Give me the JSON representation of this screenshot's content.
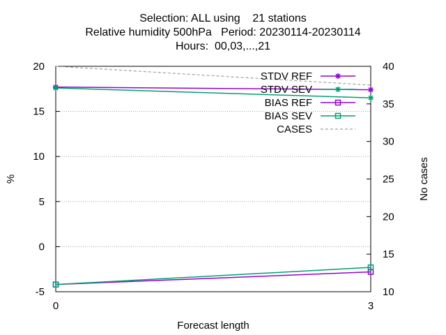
{
  "titles": {
    "line1": "Selection: ALL using    21 stations",
    "line2": "Relative humidity 500hPa   Period: 20230114-20230114",
    "line3": "Hours:  00,03,...,21"
  },
  "chart_data": {
    "type": "line",
    "xlabel": "Forecast length",
    "ylabel": "%",
    "y2label": "No cases",
    "xlim": [
      0,
      3
    ],
    "ylim": [
      -5,
      20
    ],
    "y2lim": [
      10,
      40
    ],
    "xticks": [
      "0",
      "3"
    ],
    "yticks": [
      "-5",
      "0",
      "5",
      "10",
      "15",
      "20"
    ],
    "y2ticks": [
      "10",
      "15",
      "20",
      "25",
      "30",
      "35",
      "40"
    ],
    "grid": true,
    "legend_position": "top-right",
    "x": [
      0,
      3
    ],
    "series": [
      {
        "name": "STDV REF",
        "axis": "y",
        "color": "#9400d3",
        "marker": "star",
        "dash": false,
        "values": [
          17.7,
          17.4
        ]
      },
      {
        "name": "STDV SEV",
        "axis": "y",
        "color": "#009e73",
        "marker": "star",
        "dash": false,
        "values": [
          17.6,
          16.5
        ]
      },
      {
        "name": "BIAS REF",
        "axis": "y",
        "color": "#9400d3",
        "marker": "square",
        "dash": false,
        "values": [
          -4.2,
          -2.8
        ]
      },
      {
        "name": "BIAS SEV",
        "axis": "y",
        "color": "#009e73",
        "marker": "square",
        "dash": false,
        "values": [
          -4.2,
          -2.3
        ]
      },
      {
        "name": "CASES",
        "axis": "y2",
        "color": "#a0a0a0",
        "marker": "none",
        "dash": true,
        "values": [
          40,
          37.5
        ]
      }
    ]
  }
}
